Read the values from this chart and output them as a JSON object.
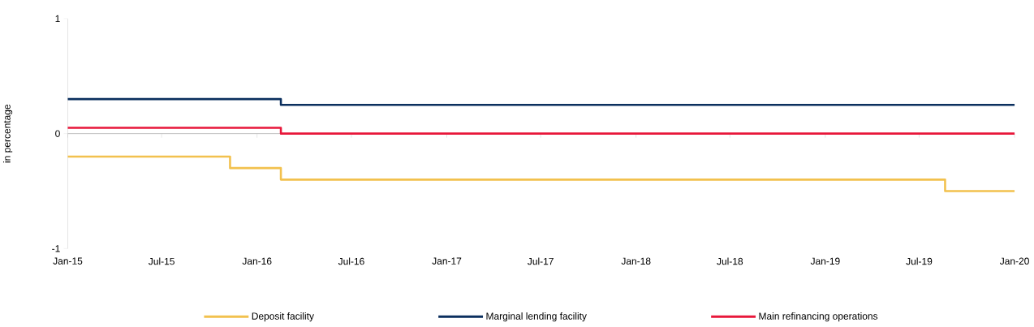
{
  "chart_data": {
    "type": "step",
    "ylabel": "in percentage",
    "xlim": [
      "2015-01-01",
      "2020-01-01"
    ],
    "ylim": [
      -1,
      1
    ],
    "yticks": [
      -1,
      0,
      1
    ],
    "xticks": [
      {
        "value": "2015-01-01",
        "label": "Jan-15"
      },
      {
        "value": "2015-07-01",
        "label": "Jul-15"
      },
      {
        "value": "2016-01-01",
        "label": "Jan-16"
      },
      {
        "value": "2016-07-01",
        "label": "Jul-16"
      },
      {
        "value": "2017-01-01",
        "label": "Jan-17"
      },
      {
        "value": "2017-07-01",
        "label": "Jul-17"
      },
      {
        "value": "2018-01-01",
        "label": "Jan-18"
      },
      {
        "value": "2018-07-01",
        "label": "Jul-18"
      },
      {
        "value": "2019-01-01",
        "label": "Jan-19"
      },
      {
        "value": "2019-07-01",
        "label": "Jul-19"
      },
      {
        "value": "2020-01-01",
        "label": "Jan-20"
      }
    ],
    "series": [
      {
        "name": "Deposit facility",
        "color": "#f2c14e",
        "x": [
          "2015-01-01",
          "2015-11-10",
          "2016-02-16",
          "2019-08-20",
          "2020-01-01"
        ],
        "values": [
          -0.2,
          -0.3,
          -0.4,
          -0.5,
          -0.5
        ]
      },
      {
        "name": "Marginal lending facility",
        "color": "#0b2f5e",
        "x": [
          "2015-01-01",
          "2016-02-16",
          "2020-01-01"
        ],
        "values": [
          0.3,
          0.25,
          0.25
        ]
      },
      {
        "name": "Main refinancing  operations",
        "color": "#e8173a",
        "x": [
          "2015-01-01",
          "2016-02-16",
          "2020-01-01"
        ],
        "values": [
          0.05,
          0,
          0
        ]
      }
    ],
    "ref_lines": [
      {
        "axis": "y",
        "value": 0,
        "color": "#bfbfbf"
      }
    ],
    "legend": "bottom",
    "grid": false,
    "marker": "none",
    "line_style": "solid"
  }
}
